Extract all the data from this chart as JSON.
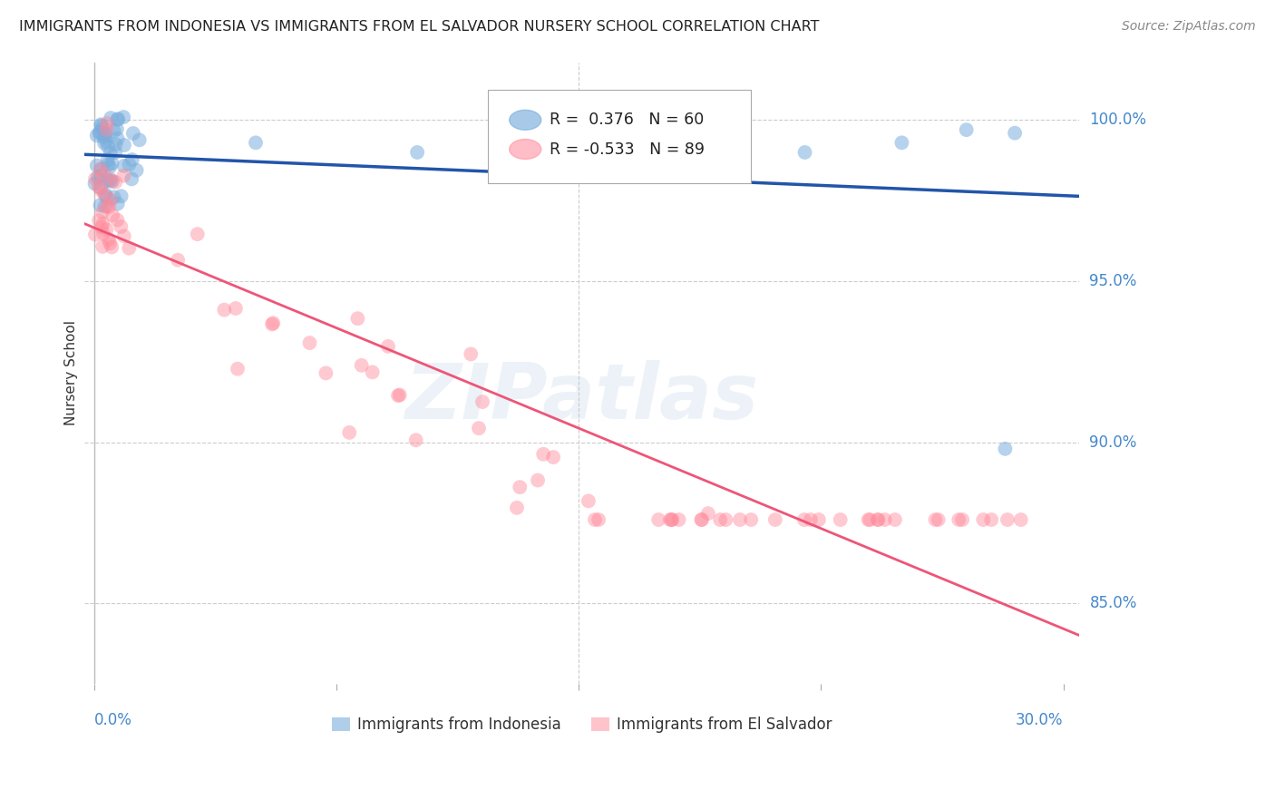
{
  "title": "IMMIGRANTS FROM INDONESIA VS IMMIGRANTS FROM EL SALVADOR NURSERY SCHOOL CORRELATION CHART",
  "source": "Source: ZipAtlas.com",
  "ylabel": "Nursery School",
  "ytick_labels": [
    "100.0%",
    "95.0%",
    "90.0%",
    "85.0%"
  ],
  "ytick_values": [
    1.0,
    0.95,
    0.9,
    0.85
  ],
  "ylim": [
    0.825,
    1.018
  ],
  "xlim": [
    -0.003,
    0.305
  ],
  "watermark_text": "ZIPatlas",
  "blue_color": "#7aaedd",
  "pink_color": "#ff8899",
  "blue_line_color": "#2255aa",
  "pink_line_color": "#ee5577",
  "grid_color": "#cccccc",
  "title_color": "#222222",
  "right_axis_color": "#4488cc",
  "bottom_axis_color": "#4488cc",
  "background_color": "#ffffff",
  "legend_r1": " 0.376",
  "legend_n1": "60",
  "legend_r2": "-0.533",
  "legend_n2": "89"
}
